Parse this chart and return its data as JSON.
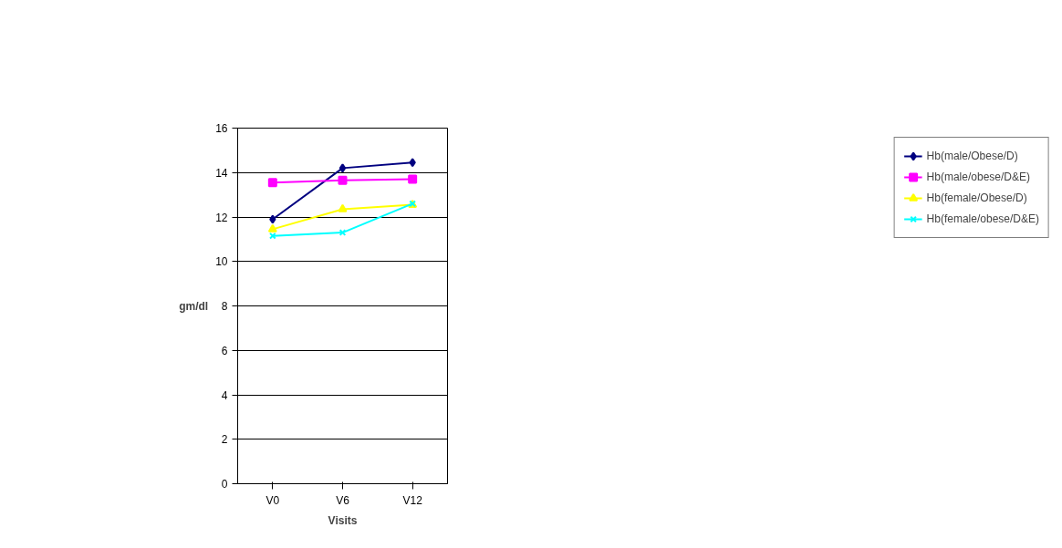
{
  "chart_data": {
    "type": "line",
    "xlabel": "Visits",
    "ylabel": "gm/dl",
    "categories": [
      "V0",
      "V6",
      "V12"
    ],
    "ylim": [
      0,
      16
    ],
    "yticks": [
      0,
      2,
      4,
      6,
      8,
      10,
      12,
      14,
      16
    ],
    "grid": "y",
    "legend": "right",
    "line_style": "solid",
    "series": [
      {
        "name": "Hb(male/Obese/D)",
        "color": "#000080",
        "marker": "diamond",
        "values": [
          11.9,
          14.2,
          14.45
        ]
      },
      {
        "name": "Hb(male/obese/D&E)",
        "color": "#ff00ff",
        "marker": "square",
        "values": [
          13.55,
          13.65,
          13.7
        ]
      },
      {
        "name": "Hb(female/Obese/D)",
        "color": "#ffff00",
        "marker": "triangle",
        "values": [
          11.45,
          12.35,
          12.55
        ]
      },
      {
        "name": "Hb(female/obese/D&E)",
        "color": "#00ffff",
        "marker": "cross",
        "values": [
          11.15,
          11.3,
          12.6
        ]
      }
    ]
  }
}
